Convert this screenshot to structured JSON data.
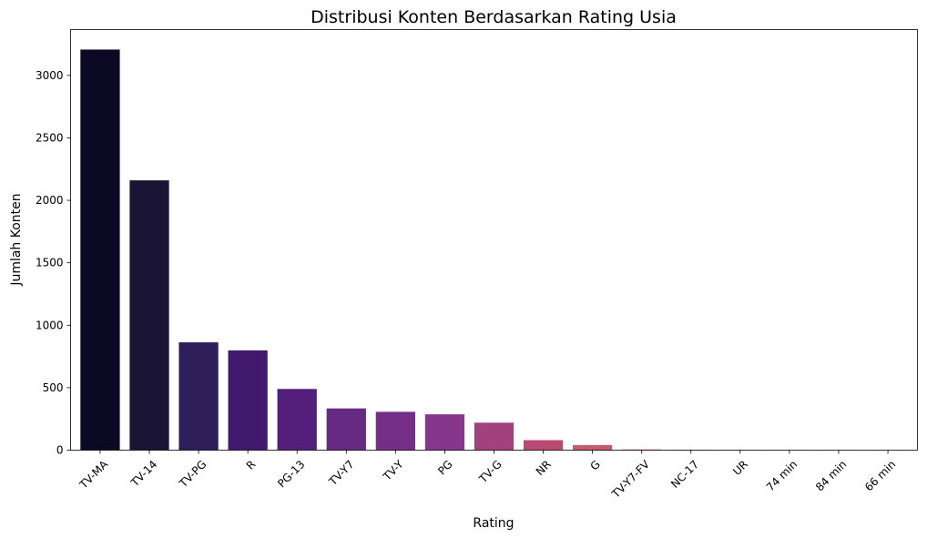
{
  "chart_data": {
    "type": "bar",
    "title": "Distribusi Konten Berdasarkan Rating Usia",
    "xlabel": "Rating",
    "ylabel": "Jumlah Konten",
    "categories": [
      "TV-MA",
      "TV-14",
      "TV-PG",
      "R",
      "PG-13",
      "TV-Y7",
      "TV-Y",
      "PG",
      "TV-G",
      "NR",
      "G",
      "TV-Y7-FV",
      "NC-17",
      "UR",
      "74 min",
      "84 min",
      "66 min"
    ],
    "values": [
      3207,
      2160,
      863,
      799,
      490,
      334,
      307,
      287,
      220,
      80,
      41,
      6,
      3,
      3,
      1,
      1,
      1
    ],
    "colors": [
      "#0b0924",
      "#1a1535",
      "#2e1e5a",
      "#421a6d",
      "#521d7b",
      "#662a83",
      "#752e88",
      "#87378b",
      "#a1417d",
      "#b94b72",
      "#c65a6f",
      "#d46c6a",
      "#de7a66",
      "#e68965",
      "#ec9966",
      "#f0a96c",
      "#f4b878"
    ],
    "yticks": [
      0,
      500,
      1000,
      1500,
      2000,
      2500,
      3000
    ],
    "ylim": [
      0,
      3367
    ],
    "grid": false,
    "legend": "none"
  }
}
